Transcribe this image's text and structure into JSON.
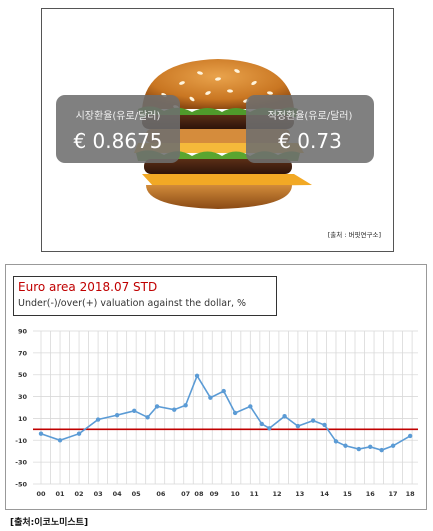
{
  "top_card": {
    "market_rate": {
      "label": "시장환율(유로/달러)",
      "value": "€ 0.8675"
    },
    "fair_rate": {
      "label": "적정환율(유로/달러)",
      "value": "€ 0.73"
    },
    "source": "[출처 : 버핏연구소]"
  },
  "footer_source": "[출처:이코노미스트]",
  "chart_data": {
    "type": "line",
    "title": "Euro area 2018.07 STD",
    "subtitle": "Under(-)/over(+) valuation against the dollar, %",
    "x_tick_labels": [
      "00",
      "01",
      "02",
      "03",
      "04",
      "05",
      "06",
      "07",
      "08",
      "09",
      "10",
      "11",
      "12",
      "13",
      "14",
      "15",
      "16",
      "17",
      "18"
    ],
    "ylim": [
      -50,
      90
    ],
    "yticks": [
      90,
      70,
      50,
      30,
      10,
      -10,
      -30,
      -50
    ],
    "reference_line": {
      "y": 0,
      "color": "#c00000"
    },
    "series": [
      {
        "color": "#5b9bd5",
        "points": [
          {
            "x": 2000.0,
            "y": -4
          },
          {
            "x": 2001.0,
            "y": -10
          },
          {
            "x": 2002.0,
            "y": -4
          },
          {
            "x": 2003.0,
            "y": 9
          },
          {
            "x": 2004.0,
            "y": 13
          },
          {
            "x": 2004.9,
            "y": 17
          },
          {
            "x": 2005.6,
            "y": 11
          },
          {
            "x": 2006.1,
            "y": 21
          },
          {
            "x": 2007.0,
            "y": 18
          },
          {
            "x": 2007.6,
            "y": 22
          },
          {
            "x": 2008.2,
            "y": 49
          },
          {
            "x": 2008.9,
            "y": 29
          },
          {
            "x": 2009.6,
            "y": 35
          },
          {
            "x": 2010.2,
            "y": 15
          },
          {
            "x": 2011.0,
            "y": 21
          },
          {
            "x": 2011.6,
            "y": 5
          },
          {
            "x": 2012.0,
            "y": 1
          },
          {
            "x": 2012.8,
            "y": 12
          },
          {
            "x": 2013.5,
            "y": 3
          },
          {
            "x": 2014.3,
            "y": 8
          },
          {
            "x": 2014.9,
            "y": 4
          },
          {
            "x": 2015.5,
            "y": -11
          },
          {
            "x": 2016.0,
            "y": -15
          },
          {
            "x": 2016.7,
            "y": -18
          },
          {
            "x": 2017.3,
            "y": -16
          },
          {
            "x": 2017.9,
            "y": -19
          },
          {
            "x": 2018.5,
            "y": -15
          },
          {
            "x": 2019.4,
            "y": -6
          }
        ]
      }
    ],
    "grid": true
  },
  "colors": {
    "line": "#5b9bd5",
    "reference": "#c00000",
    "grid": "#d9d9d9"
  }
}
